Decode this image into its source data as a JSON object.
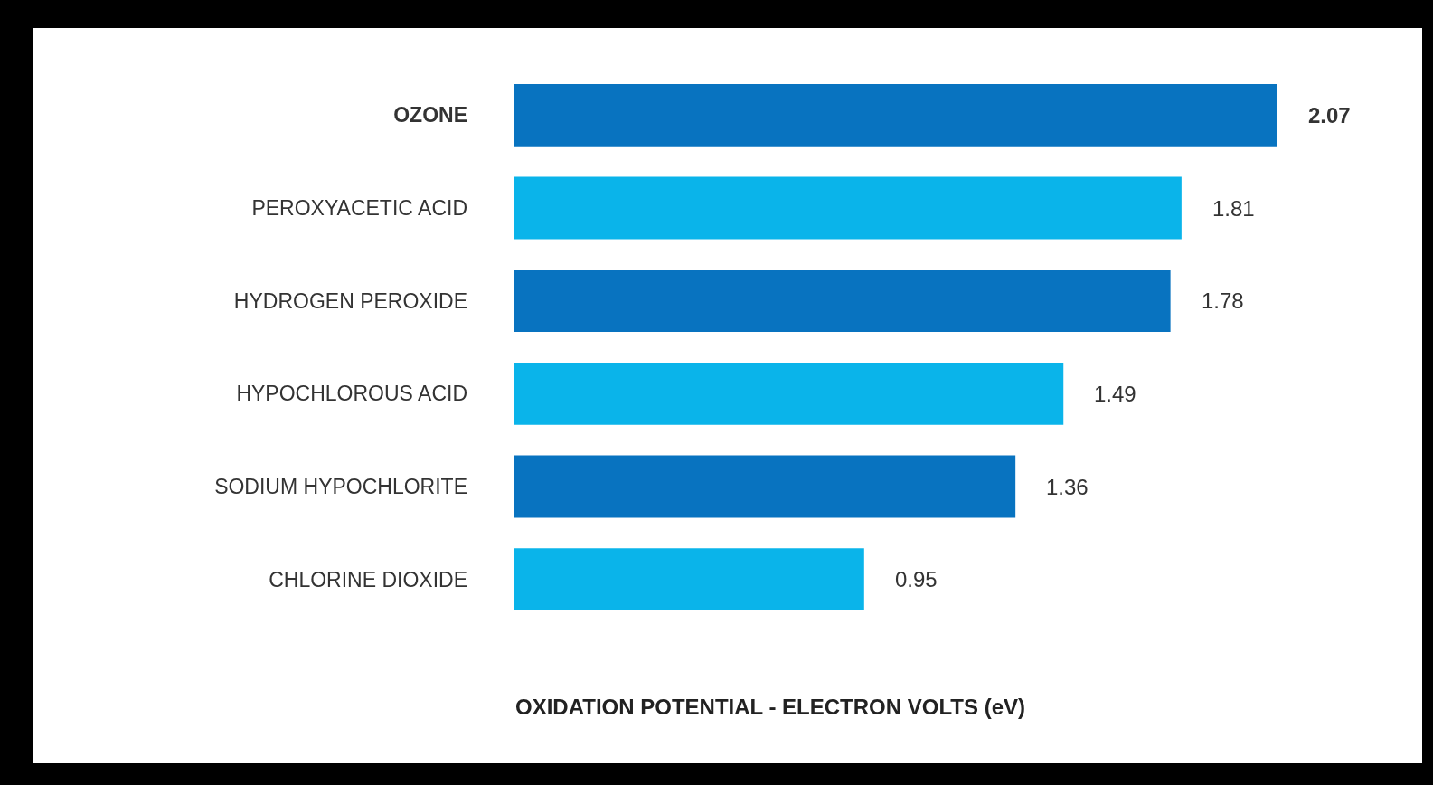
{
  "chart_data": {
    "type": "bar",
    "orientation": "horizontal",
    "xlabel": "OXIDATION POTENTIAL - ELECTRON VOLTS (eV)",
    "categories": [
      "OZONE",
      "PEROXYACETIC ACID",
      "HYDROGEN PEROXIDE",
      "HYPOCHLOROUS ACID",
      "SODIUM HYPOCHLORITE",
      "CHLORINE DIOXIDE"
    ],
    "values": [
      2.07,
      1.81,
      1.78,
      1.49,
      1.36,
      0.95
    ],
    "colors": [
      "#0873c0",
      "#0ab4ea",
      "#0873c0",
      "#0ab4ea",
      "#0873c0",
      "#0ab4ea"
    ],
    "data_labels": true
  }
}
